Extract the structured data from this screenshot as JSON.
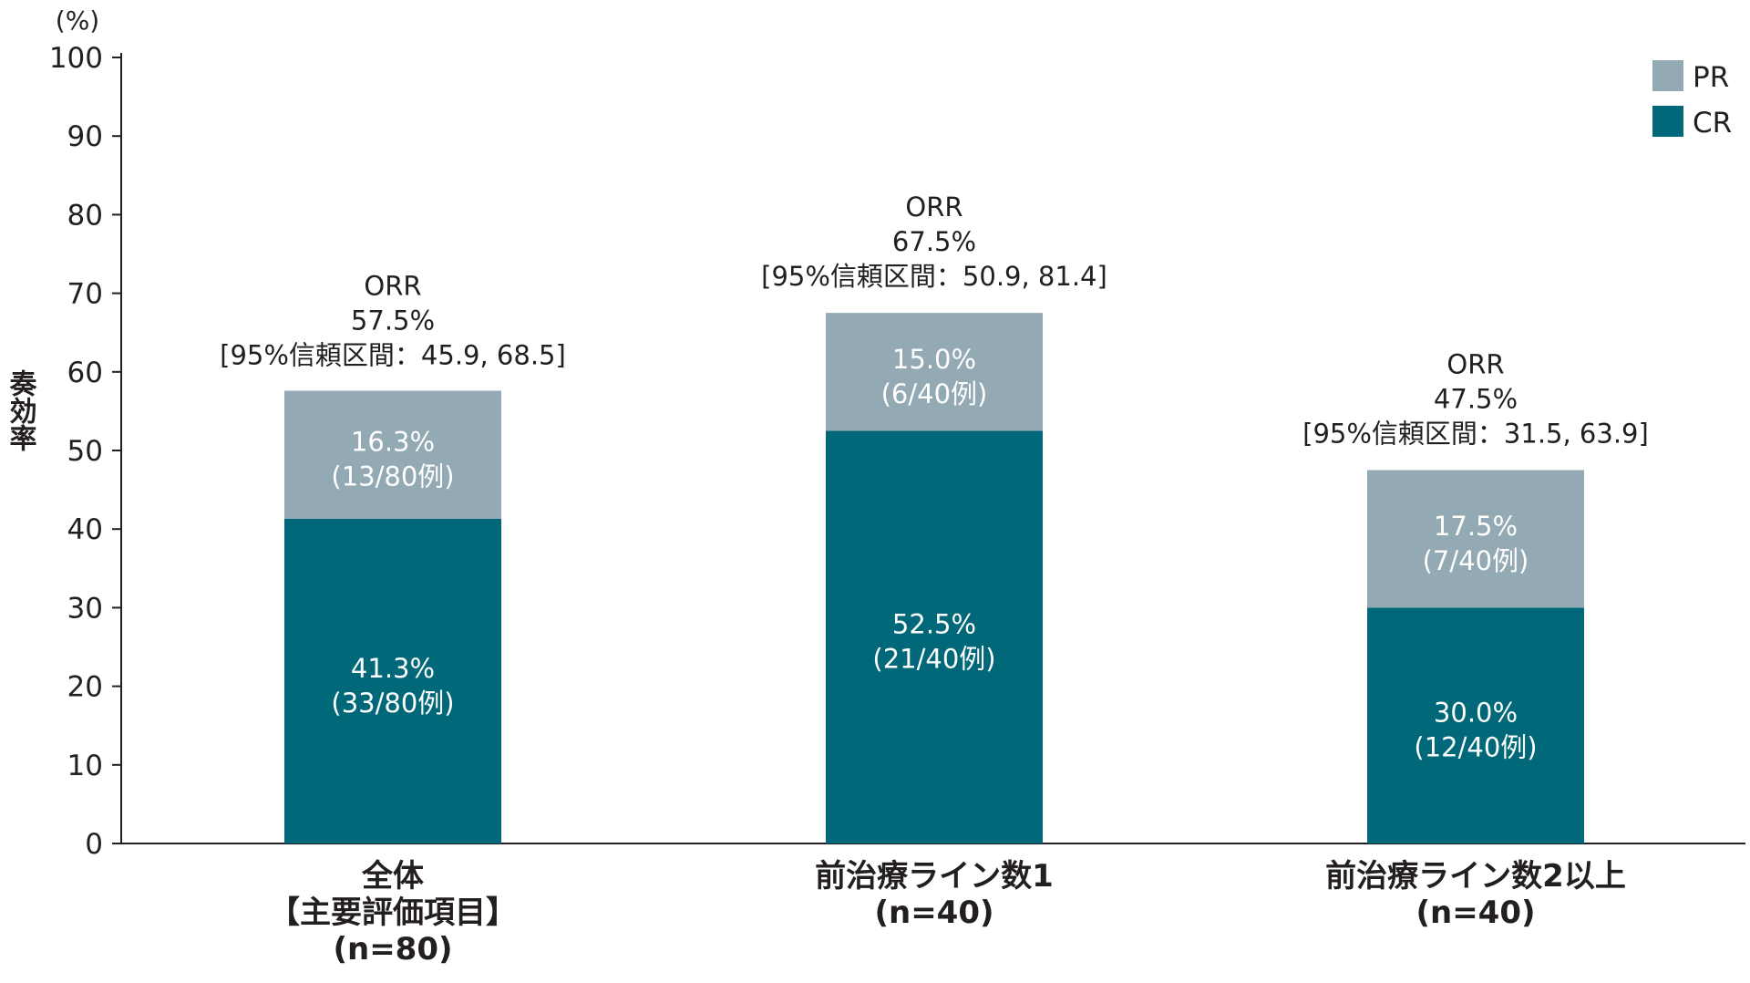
{
  "chart_data": {
    "type": "bar",
    "stacked": true,
    "ylabel": "奏効率",
    "yunit": "(%)",
    "ylim": [
      0,
      100
    ],
    "yticks": [
      0,
      10,
      20,
      30,
      40,
      50,
      60,
      70,
      80,
      90,
      100
    ],
    "grid": false,
    "legend_position": "top-right",
    "categories": [
      {
        "lines": [
          "全体",
          "【主要評価項目】",
          "(n=80)"
        ]
      },
      {
        "lines": [
          "前治療ライン数1",
          "(n=40)"
        ]
      },
      {
        "lines": [
          "前治療ライン数2以上",
          "(n=40)"
        ]
      }
    ],
    "series": [
      {
        "name": "CR",
        "color": "#006878",
        "values": [
          41.3,
          52.5,
          30.0
        ],
        "labels": [
          [
            "41.3%",
            "(33/80例)"
          ],
          [
            "52.5%",
            "(21/40例)"
          ],
          [
            "30.0%",
            "(12/40例)"
          ]
        ]
      },
      {
        "name": "PR",
        "color": "#93a9b3",
        "values": [
          16.3,
          15.0,
          17.5
        ],
        "labels": [
          [
            "16.3%",
            "(13/80例)"
          ],
          [
            "15.0%",
            "(6/40例)"
          ],
          [
            "17.5%",
            "(7/40例)"
          ]
        ]
      }
    ],
    "legend": [
      {
        "name": "PR",
        "color": "#93a9b3"
      },
      {
        "name": "CR",
        "color": "#006878"
      }
    ],
    "orr_annotations": [
      {
        "total": 57.5,
        "lines": [
          "ORR",
          "57.5%",
          "[95%信頼区間：45.9, 68.5]"
        ]
      },
      {
        "total": 67.5,
        "lines": [
          "ORR",
          "67.5%",
          "[95%信頼区間：50.9, 81.4]"
        ]
      },
      {
        "total": 47.5,
        "lines": [
          "ORR",
          "47.5%",
          "[95%信頼区間：31.5, 63.9]"
        ]
      }
    ]
  }
}
